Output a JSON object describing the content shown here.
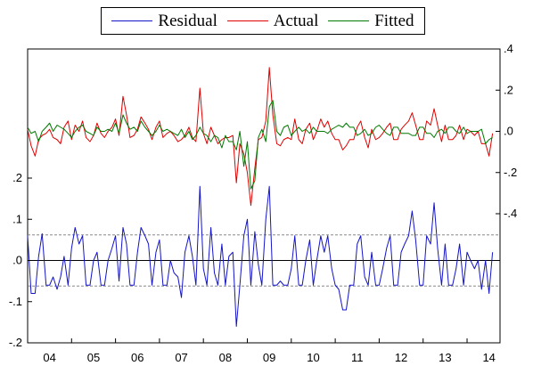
{
  "chart_data": {
    "type": "line",
    "legend": {
      "items": [
        {
          "name": "Residual",
          "color": "#1414c8"
        },
        {
          "name": "Actual",
          "color": "#e00000"
        },
        {
          "name": "Fitted",
          "color": "#007a00"
        }
      ],
      "placement": "top"
    },
    "x_tick_labels": [
      "04",
      "05",
      "06",
      "07",
      "08",
      "09",
      "10",
      "11",
      "12",
      "13",
      "14"
    ],
    "left_axis": {
      "label": "",
      "ylim": [
        -0.2,
        0.2
      ],
      "tick_values": [
        0.2,
        0.1,
        0.0,
        -0.1,
        -0.2
      ],
      "tick_labels": [
        ".2",
        ".1",
        ".0",
        "-.1",
        "-.2"
      ],
      "reference_lines": [
        0.0
      ],
      "band": [
        -0.062,
        0.062
      ]
    },
    "right_axis": {
      "label": "",
      "ylim": [
        -0.4,
        0.4
      ],
      "tick_values": [
        0.4,
        0.2,
        0.0,
        -0.2,
        -0.4
      ],
      "tick_labels": [
        ".4",
        ".2",
        ".0",
        "-.2",
        "-.4"
      ]
    },
    "x": [
      2004.0,
      2004.08,
      2004.17,
      2004.25,
      2004.33,
      2004.42,
      2004.5,
      2004.58,
      2004.67,
      2004.75,
      2004.83,
      2004.92,
      2005.0,
      2005.08,
      2005.17,
      2005.25,
      2005.33,
      2005.42,
      2005.5,
      2005.58,
      2005.67,
      2005.75,
      2005.83,
      2005.92,
      2006.0,
      2006.08,
      2006.17,
      2006.25,
      2006.33,
      2006.42,
      2006.5,
      2006.58,
      2006.67,
      2006.75,
      2006.83,
      2006.92,
      2007.0,
      2007.08,
      2007.17,
      2007.25,
      2007.33,
      2007.42,
      2007.5,
      2007.58,
      2007.67,
      2007.75,
      2007.83,
      2007.92,
      2008.0,
      2008.08,
      2008.17,
      2008.25,
      2008.33,
      2008.42,
      2008.5,
      2008.58,
      2008.67,
      2008.75,
      2008.83,
      2008.92,
      2009.0,
      2009.08,
      2009.17,
      2009.25,
      2009.33,
      2009.42,
      2009.5,
      2009.58,
      2009.67,
      2009.75,
      2009.83,
      2009.92,
      2010.0,
      2010.08,
      2010.17,
      2010.25,
      2010.33,
      2010.42,
      2010.5,
      2010.58,
      2010.67,
      2010.75,
      2010.83,
      2010.92,
      2011.0,
      2011.08,
      2011.17,
      2011.25,
      2011.33,
      2011.42,
      2011.5,
      2011.58,
      2011.67,
      2011.75,
      2011.83,
      2011.92,
      2012.0,
      2012.08,
      2012.17,
      2012.25,
      2012.33,
      2012.42,
      2012.5,
      2012.58,
      2012.67,
      2012.75,
      2012.83,
      2012.92,
      2013.0,
      2013.08,
      2013.17,
      2013.25,
      2013.33,
      2013.42,
      2013.5,
      2013.58,
      2013.67,
      2013.75,
      2013.83,
      2013.92,
      2014.0,
      2014.08,
      2014.17,
      2014.25,
      2014.33,
      2014.42,
      2014.5,
      2014.58
    ],
    "series": [
      {
        "name": "Residual",
        "axis": "left",
        "values": [
          0.06,
          -0.08,
          -0.08,
          0.01,
          0.065,
          -0.06,
          -0.06,
          -0.04,
          -0.07,
          -0.04,
          0.01,
          -0.06,
          0.03,
          0.08,
          0.04,
          0.06,
          -0.06,
          -0.06,
          0.0,
          0.02,
          -0.06,
          -0.06,
          0.0,
          0.03,
          0.06,
          -0.05,
          0.08,
          0.04,
          -0.06,
          -0.06,
          0.02,
          0.08,
          0.06,
          0.04,
          -0.06,
          0.02,
          0.05,
          -0.06,
          -0.06,
          0.0,
          -0.03,
          -0.04,
          -0.09,
          0.02,
          0.06,
          0.01,
          -0.06,
          0.18,
          -0.02,
          -0.06,
          0.08,
          -0.03,
          -0.06,
          0.04,
          -0.06,
          0.01,
          0.02,
          -0.16,
          -0.06,
          0.06,
          0.1,
          -0.06,
          0.07,
          -0.01,
          -0.06,
          0.1,
          0.18,
          -0.06,
          -0.06,
          -0.05,
          -0.06,
          -0.06,
          -0.02,
          0.06,
          -0.06,
          -0.06,
          0.0,
          0.05,
          -0.06,
          0.0,
          0.06,
          0.02,
          0.06,
          -0.02,
          -0.06,
          -0.07,
          -0.12,
          -0.12,
          -0.06,
          -0.06,
          0.04,
          0.06,
          -0.04,
          -0.06,
          0.02,
          -0.06,
          -0.06,
          -0.02,
          0.03,
          0.06,
          -0.06,
          -0.06,
          0.02,
          0.04,
          0.06,
          0.12,
          0.05,
          -0.06,
          -0.06,
          0.06,
          0.04,
          0.14,
          0.03,
          -0.06,
          0.04,
          -0.06,
          -0.06,
          -0.02,
          0.04,
          -0.06,
          0.02,
          0.0,
          -0.02,
          0.0,
          -0.07,
          0.0,
          -0.08,
          0.02
        ]
      },
      {
        "name": "Actual",
        "axis": "right",
        "values": [
          0.01,
          -0.07,
          -0.12,
          -0.04,
          -0.02,
          -0.01,
          0.01,
          -0.03,
          -0.04,
          -0.06,
          0.02,
          0.05,
          -0.04,
          0.03,
          0.0,
          0.05,
          -0.03,
          -0.05,
          -0.02,
          0.04,
          -0.01,
          -0.03,
          0.0,
          0.02,
          0.06,
          -0.02,
          0.17,
          0.08,
          -0.03,
          -0.02,
          0.01,
          0.07,
          0.04,
          0.01,
          -0.04,
          0.02,
          0.05,
          -0.03,
          -0.01,
          0.0,
          -0.02,
          -0.05,
          -0.04,
          -0.02,
          0.02,
          -0.03,
          -0.05,
          0.21,
          -0.01,
          -0.06,
          0.02,
          -0.02,
          -0.06,
          -0.04,
          -0.03,
          -0.03,
          -0.02,
          -0.25,
          -0.06,
          -0.11,
          -0.2,
          -0.36,
          -0.18,
          -0.04,
          -0.03,
          0.05,
          0.31,
          0.08,
          -0.06,
          -0.07,
          -0.04,
          -0.03,
          -0.04,
          0.06,
          -0.04,
          -0.06,
          0.01,
          0.04,
          -0.04,
          0.0,
          0.06,
          0.02,
          0.05,
          -0.01,
          -0.04,
          -0.04,
          -0.09,
          -0.07,
          -0.04,
          -0.04,
          0.02,
          0.05,
          -0.03,
          -0.08,
          0.01,
          -0.04,
          -0.03,
          -0.01,
          0.02,
          0.04,
          -0.04,
          -0.04,
          0.01,
          0.03,
          0.05,
          0.09,
          0.03,
          -0.04,
          -0.04,
          0.05,
          0.03,
          0.11,
          0.03,
          -0.05,
          0.03,
          -0.04,
          -0.04,
          -0.02,
          0.03,
          -0.04,
          0.01,
          0.0,
          -0.02,
          0.0,
          -0.06,
          -0.06,
          -0.12,
          -0.01
        ]
      },
      {
        "name": "Fitted",
        "axis": "right",
        "values": [
          0.02,
          -0.01,
          0.0,
          -0.05,
          0.0,
          0.02,
          0.04,
          0.0,
          0.03,
          0.02,
          0.01,
          -0.01,
          -0.03,
          0.0,
          0.02,
          0.03,
          0.0,
          -0.01,
          -0.02,
          0.02,
          0.0,
          0.0,
          0.01,
          0.0,
          0.04,
          -0.01,
          0.08,
          0.04,
          0.01,
          0.02,
          0.0,
          0.05,
          0.02,
          0.0,
          -0.02,
          0.0,
          0.03,
          0.0,
          0.01,
          0.0,
          -0.01,
          -0.02,
          0.01,
          -0.03,
          0.0,
          -0.04,
          -0.02,
          0.02,
          -0.01,
          -0.02,
          -0.05,
          -0.02,
          -0.03,
          -0.08,
          -0.02,
          -0.05,
          -0.05,
          -0.09,
          0.0,
          -0.17,
          -0.05,
          -0.28,
          -0.24,
          -0.03,
          0.01,
          -0.05,
          0.12,
          0.15,
          0.0,
          -0.02,
          0.02,
          0.03,
          -0.02,
          0.0,
          0.02,
          0.0,
          0.01,
          -0.01,
          0.02,
          0.0,
          0.0,
          0.0,
          -0.01,
          0.01,
          0.02,
          0.03,
          0.02,
          0.04,
          0.02,
          0.02,
          -0.02,
          -0.01,
          0.01,
          -0.02,
          -0.01,
          0.02,
          0.03,
          0.01,
          -0.01,
          -0.02,
          0.02,
          0.02,
          -0.01,
          -0.01,
          -0.01,
          -0.02,
          -0.02,
          0.02,
          0.02,
          -0.01,
          -0.01,
          -0.03,
          0.0,
          0.01,
          -0.01,
          0.02,
          0.02,
          0.0,
          -0.01,
          0.02,
          -0.01,
          0.0,
          0.0,
          0.0,
          0.01,
          -0.06,
          -0.04,
          -0.03
        ]
      }
    ]
  }
}
